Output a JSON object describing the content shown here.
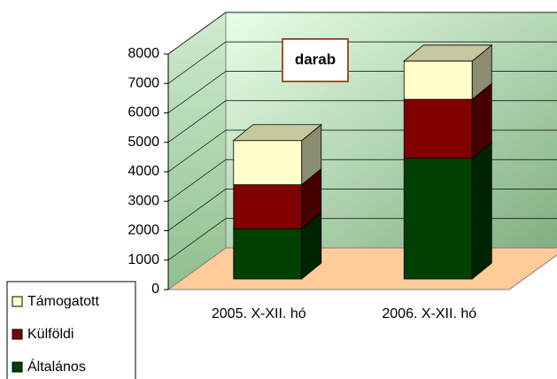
{
  "chart_data": {
    "type": "bar3d_stacked",
    "title": "darab",
    "categories": [
      "2005. X-XII. hó",
      "2006. X-XII. hó"
    ],
    "series": [
      {
        "name": "Általános",
        "color": "#004000",
        "values": [
          1700,
          4100
        ]
      },
      {
        "name": "Külföldi",
        "color": "#800000",
        "values": [
          1500,
          2000
        ]
      },
      {
        "name": "Támogatott",
        "color": "#ffffcc",
        "values": [
          1500,
          1300
        ]
      }
    ],
    "ylim": [
      0,
      8000
    ],
    "yticks": [
      0,
      1000,
      2000,
      3000,
      4000,
      5000,
      6000,
      7000,
      8000
    ],
    "grid": true,
    "legend": "bottom-left"
  }
}
